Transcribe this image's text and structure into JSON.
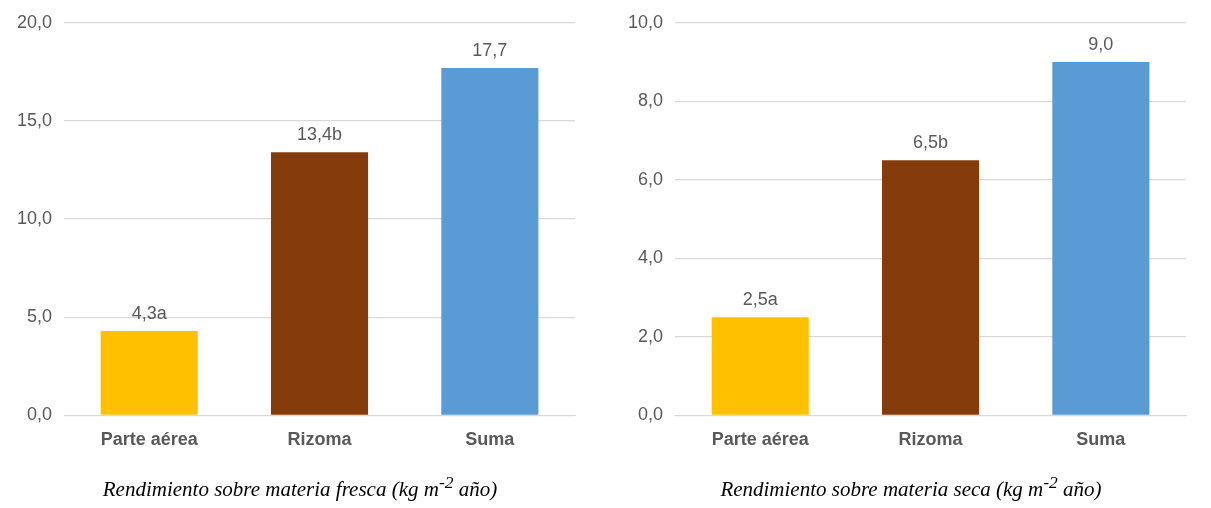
{
  "chart_data": [
    {
      "type": "bar",
      "xlabel": "Rendimiento sobre materia fresca (kg m$^{-2}$ año)",
      "categories": [
        "Parte aérea",
        "Rizoma",
        "Suma"
      ],
      "values": [
        4.3,
        13.4,
        17.7
      ],
      "colors": [
        "#ffc000",
        "#843c0c",
        "#5b9bd5"
      ],
      "value_labels": [
        "4,3a",
        "13,4b",
        "17,7"
      ],
      "ylim": [
        0,
        20
      ],
      "yticks": [
        {
          "value": 0,
          "label": "0,0"
        },
        {
          "value": 5,
          "label": "5,0"
        },
        {
          "value": 10,
          "label": "10,0"
        },
        {
          "value": 15,
          "label": "15,0"
        },
        {
          "value": 20,
          "label": "20,0"
        }
      ],
      "grid": "y",
      "legend": false
    },
    {
      "type": "bar",
      "xlabel": "Rendimiento sobre materia seca (kg m$^{-2}$ año)",
      "categories": [
        "Parte aérea",
        "Rizoma",
        "Suma"
      ],
      "values": [
        2.5,
        6.5,
        9.0
      ],
      "colors": [
        "#ffc000",
        "#843c0c",
        "#5b9bd5"
      ],
      "value_labels": [
        "2,5a",
        "6,5b",
        "9,0"
      ],
      "ylim": [
        0,
        10
      ],
      "yticks": [
        {
          "value": 0,
          "label": "0,0"
        },
        {
          "value": 2,
          "label": "2,0"
        },
        {
          "value": 4,
          "label": "4,0"
        },
        {
          "value": 6,
          "label": "6,0"
        },
        {
          "value": 8,
          "label": "8,0"
        },
        {
          "value": 10,
          "label": "10,0"
        }
      ],
      "grid": "y",
      "legend": false
    }
  ]
}
